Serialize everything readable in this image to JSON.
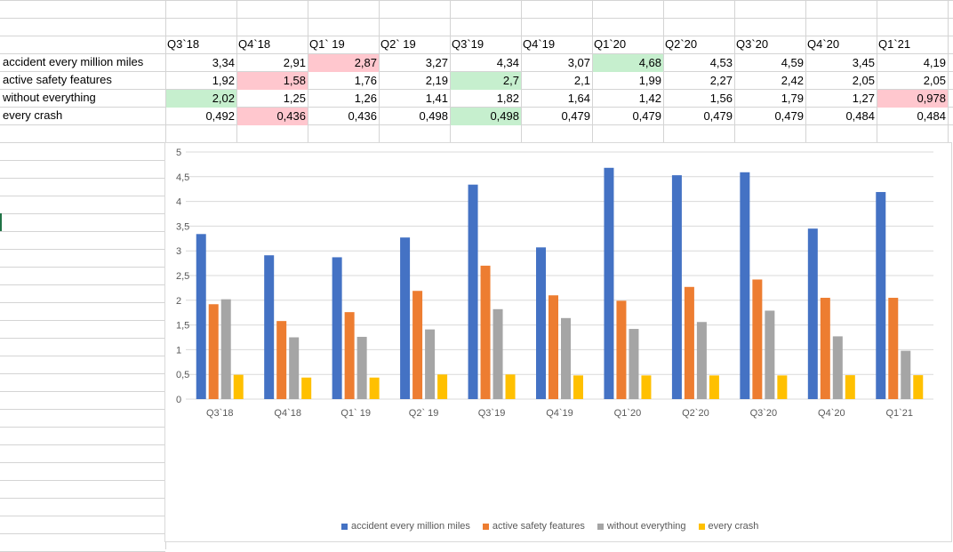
{
  "table": {
    "headers": [
      "Q3`18",
      "Q4`18",
      "Q1` 19",
      "Q2` 19",
      "Q3`19",
      "Q4`19",
      "Q1`20",
      "Q2`20",
      "Q3`20",
      "Q4`20",
      "Q1`21"
    ],
    "rows": [
      {
        "label": "accident every million miles",
        "values": [
          "3,34",
          "2,91",
          "2,87",
          "3,27",
          "4,34",
          "3,07",
          "4,68",
          "4,53",
          "4,59",
          "3,45",
          "4,19"
        ],
        "highlight": [
          "",
          "",
          "red",
          "",
          "",
          "",
          "green",
          "",
          "",
          "",
          ""
        ]
      },
      {
        "label": "active safety features",
        "values": [
          "1,92",
          "1,58",
          "1,76",
          "2,19",
          "2,7",
          "2,1",
          "1,99",
          "2,27",
          "2,42",
          "2,05",
          "2,05"
        ],
        "highlight": [
          "",
          "red",
          "",
          "",
          "green",
          "",
          "",
          "",
          "",
          "",
          ""
        ]
      },
      {
        "label": "without everything",
        "values": [
          "2,02",
          "1,25",
          "1,26",
          "1,41",
          "1,82",
          "1,64",
          "1,42",
          "1,56",
          "1,79",
          "1,27",
          "0,978"
        ],
        "highlight": [
          "green",
          "",
          "",
          "",
          "",
          "",
          "",
          "",
          "",
          "",
          "red"
        ]
      },
      {
        "label": "every crash",
        "values": [
          "0,492",
          "0,436",
          "0,436",
          "0,498",
          "0,498",
          "0,479",
          "0,479",
          "0,479",
          "0,479",
          "0,484",
          "0,484"
        ],
        "highlight": [
          "",
          "red",
          "",
          "",
          "green",
          "",
          "",
          "",
          "",
          "",
          ""
        ]
      }
    ]
  },
  "colors": {
    "highlight_red": "#ffc7ce",
    "highlight_green": "#c6efce",
    "series": [
      "#4472c4",
      "#ed7d31",
      "#a5a5a5",
      "#ffc000"
    ]
  },
  "chart_data": {
    "type": "bar",
    "title": "",
    "xlabel": "",
    "ylabel": "",
    "ylim": [
      0,
      5
    ],
    "yticks": [
      "0",
      "0,5",
      "1",
      "1,5",
      "2",
      "2,5",
      "3",
      "3,5",
      "4",
      "4,5",
      "5"
    ],
    "grid": true,
    "legend": "bottom",
    "categories": [
      "Q3`18",
      "Q4`18",
      "Q1` 19",
      "Q2` 19",
      "Q3`19",
      "Q4`19",
      "Q1`20",
      "Q2`20",
      "Q3`20",
      "Q4`20",
      "Q1`21"
    ],
    "series": [
      {
        "name": "accident every million miles",
        "values": [
          3.34,
          2.91,
          2.87,
          3.27,
          4.34,
          3.07,
          4.68,
          4.53,
          4.59,
          3.45,
          4.19
        ]
      },
      {
        "name": "active safety features",
        "values": [
          1.92,
          1.58,
          1.76,
          2.19,
          2.7,
          2.1,
          1.99,
          2.27,
          2.42,
          2.05,
          2.05
        ]
      },
      {
        "name": "without everything",
        "values": [
          2.02,
          1.25,
          1.26,
          1.41,
          1.82,
          1.64,
          1.42,
          1.56,
          1.79,
          1.27,
          0.978
        ]
      },
      {
        "name": "every crash",
        "values": [
          0.492,
          0.436,
          0.436,
          0.498,
          0.498,
          0.479,
          0.479,
          0.479,
          0.479,
          0.484,
          0.484
        ]
      }
    ]
  }
}
